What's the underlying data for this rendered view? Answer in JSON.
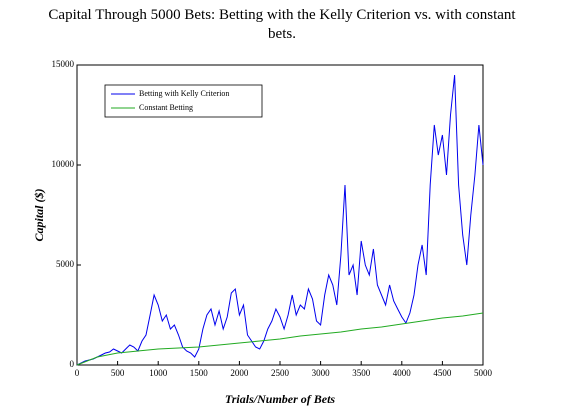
{
  "chart_data": {
    "type": "line",
    "title": "Capital Through 5000 Bets: Betting with the Kelly Criterion vs. with constant bets.",
    "xlabel": "Trials/Number of Bets",
    "ylabel": "Capital ($)",
    "xlim": [
      0,
      5000
    ],
    "xticks": [
      0,
      500,
      1000,
      1500,
      2000,
      2500,
      3000,
      3500,
      4000,
      4500,
      5000
    ],
    "ylim": [
      0,
      15000
    ],
    "yticks": [
      0,
      5000,
      10000,
      15000
    ],
    "legend": "upper-left",
    "series": [
      {
        "name": "Betting with Kelly Criterion",
        "color": "#0000ee",
        "x": [
          0,
          50,
          100,
          150,
          200,
          250,
          300,
          350,
          400,
          450,
          500,
          550,
          600,
          650,
          700,
          750,
          800,
          850,
          900,
          950,
          1000,
          1050,
          1100,
          1150,
          1200,
          1250,
          1300,
          1350,
          1400,
          1450,
          1500,
          1550,
          1600,
          1650,
          1700,
          1750,
          1800,
          1850,
          1900,
          1950,
          2000,
          2050,
          2100,
          2150,
          2200,
          2250,
          2300,
          2350,
          2400,
          2450,
          2500,
          2550,
          2600,
          2650,
          2700,
          2750,
          2800,
          2850,
          2900,
          2950,
          3000,
          3050,
          3100,
          3150,
          3200,
          3250,
          3300,
          3350,
          3400,
          3450,
          3500,
          3550,
          3600,
          3650,
          3700,
          3750,
          3800,
          3850,
          3900,
          3950,
          4000,
          4050,
          4100,
          4150,
          4200,
          4250,
          4300,
          4350,
          4400,
          4450,
          4500,
          4550,
          4600,
          4650,
          4700,
          4750,
          4800,
          4850,
          4900,
          4950,
          5000
        ],
        "values": [
          0,
          100,
          200,
          250,
          300,
          400,
          500,
          600,
          650,
          800,
          700,
          600,
          800,
          1000,
          900,
          700,
          1200,
          1500,
          2500,
          3500,
          3000,
          2200,
          2500,
          1800,
          2000,
          1500,
          900,
          700,
          600,
          400,
          800,
          1800,
          2500,
          2800,
          2000,
          2700,
          1800,
          2400,
          3600,
          3800,
          2500,
          3000,
          1500,
          1200,
          900,
          800,
          1200,
          1800,
          2200,
          2800,
          2400,
          1800,
          2500,
          3500,
          2500,
          3000,
          2800,
          3800,
          3300,
          2200,
          2000,
          3500,
          4500,
          4000,
          3000,
          5500,
          9000,
          4500,
          5000,
          3500,
          6200,
          5000,
          4500,
          5800,
          4000,
          3500,
          3000,
          4000,
          3200,
          2800,
          2400,
          2100,
          2600,
          3500,
          5000,
          6000,
          4500,
          9000,
          12000,
          10500,
          11500,
          9500,
          12500,
          14500,
          9000,
          6500,
          5000,
          7500,
          9500,
          12000,
          10000
        ]
      },
      {
        "name": "Constant Betting",
        "color": "#22aa22",
        "x": [
          0,
          250,
          500,
          750,
          1000,
          1250,
          1500,
          1750,
          2000,
          2250,
          2500,
          2750,
          3000,
          3250,
          3500,
          3750,
          4000,
          4250,
          4500,
          4750,
          5000
        ],
        "values": [
          0,
          400,
          600,
          700,
          800,
          850,
          900,
          1000,
          1100,
          1200,
          1300,
          1450,
          1550,
          1650,
          1800,
          1900,
          2050,
          2200,
          2350,
          2450,
          2600
        ]
      }
    ]
  }
}
